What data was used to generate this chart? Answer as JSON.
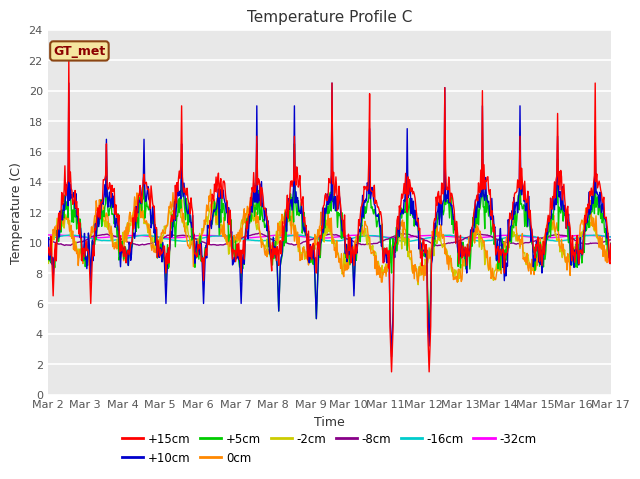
{
  "title": "Temperature Profile C",
  "xlabel": "Time",
  "ylabel": "Temperature (C)",
  "xlim": [
    0,
    15
  ],
  "ylim": [
    0,
    24
  ],
  "yticks": [
    0,
    2,
    4,
    6,
    8,
    10,
    12,
    14,
    16,
    18,
    20,
    22,
    24
  ],
  "xtick_labels": [
    "Mar 2",
    "Mar 3",
    "Mar 4",
    "Mar 5",
    "Mar 6",
    "Mar 7",
    "Mar 8",
    "Mar 9",
    "Mar 10",
    "Mar 11",
    "Mar 12",
    "Mar 13",
    "Mar 14",
    "Mar 15",
    "Mar 16",
    "Mar 17"
  ],
  "series_colors": {
    "+15cm": "#ff0000",
    "+10cm": "#0000cc",
    "+5cm": "#00cc00",
    "0cm": "#ff8800",
    "-2cm": "#cccc00",
    "-8cm": "#880088",
    "-16cm": "#00cccc",
    "-32cm": "#ff00ff"
  },
  "plot_bg": "#e8e8e8",
  "gt_met_text": "GT_met",
  "gt_met_color": "#8B0000",
  "gt_met_bg": "#f5e6a0",
  "gt_met_edge": "#8B4513"
}
